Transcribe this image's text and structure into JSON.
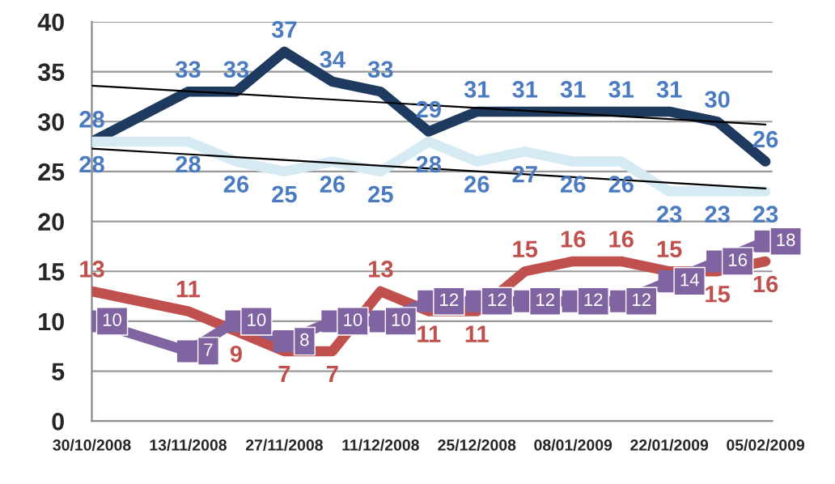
{
  "chart_data": {
    "type": "line",
    "x": [
      "2008-10-30",
      "2008-11-13",
      "2008-11-20",
      "2008-11-27",
      "2008-12-04",
      "2008-12-11",
      "2008-12-18",
      "2008-12-25",
      "2009-01-01",
      "2009-01-08",
      "2009-01-15",
      "2009-01-22",
      "2009-01-29",
      "2009-02-05"
    ],
    "series": [
      {
        "color": "#1f3a5f",
        "values": [
          28,
          33,
          33,
          37,
          34,
          33,
          29,
          31,
          31,
          31,
          31,
          31,
          30,
          26
        ],
        "value_labels": [
          "28",
          "33",
          "33",
          "37",
          "34",
          "33",
          "29",
          "31",
          "31",
          "31",
          "31",
          "31",
          "30",
          "26"
        ]
      },
      {
        "color": "#d5eaf2",
        "values": [
          28,
          28,
          26,
          25,
          26,
          25,
          28,
          26,
          27,
          26,
          26,
          23,
          23,
          23
        ],
        "value_labels": [
          "28",
          "28",
          "26",
          "25",
          "26",
          "25",
          "28",
          "26",
          "27",
          "26",
          "26",
          "23",
          "23",
          "23"
        ]
      },
      {
        "color": "#c0504d",
        "values": [
          13,
          11,
          9,
          7,
          7,
          13,
          11,
          11,
          15,
          16,
          16,
          15,
          15,
          16
        ],
        "value_labels": [
          "13",
          "11",
          "9",
          "7",
          "7",
          "13",
          "11",
          "11",
          "15",
          "16",
          "16",
          "15",
          "15",
          "16"
        ]
      },
      {
        "color": "#8064a2",
        "marker": "square",
        "values": [
          10,
          7,
          10,
          8,
          10,
          10,
          12,
          12,
          12,
          12,
          12,
          14,
          16,
          18
        ],
        "value_labels": [
          "10",
          "7",
          "10",
          "8",
          "10",
          "10",
          "12",
          "12",
          "12",
          "12",
          "12",
          "14",
          "16",
          "18"
        ]
      },
      {
        "type": "line",
        "color": "#000000",
        "x": [
          "2008-10-30",
          "2009-02-05"
        ],
        "values": [
          33.6,
          29.7
        ]
      },
      {
        "type": "line",
        "color": "#000000",
        "x": [
          "2008-10-30",
          "2009-02-05"
        ],
        "values": [
          27.3,
          23.3
        ]
      }
    ],
    "xlim": [
      "2008-10-30",
      "2009-02-06"
    ],
    "xticks": [
      {
        "value": "2008-10-30",
        "label": "30/10/2008"
      },
      {
        "value": "2008-11-13",
        "label": "13/11/2008"
      },
      {
        "value": "2008-11-27",
        "label": "27/11/2008"
      },
      {
        "value": "2008-12-11",
        "label": "11/12/2008"
      },
      {
        "value": "2008-12-25",
        "label": "25/12/2008"
      },
      {
        "value": "2009-01-08",
        "label": "08/01/2009"
      },
      {
        "value": "2009-01-22",
        "label": "22/01/2009"
      },
      {
        "value": "2009-02-05",
        "label": "05/02/2009"
      }
    ],
    "ylim": [
      0,
      40
    ],
    "yticks": [
      0,
      5,
      10,
      15,
      20,
      25,
      30,
      35,
      40
    ],
    "grid": "y",
    "legend": false
  }
}
